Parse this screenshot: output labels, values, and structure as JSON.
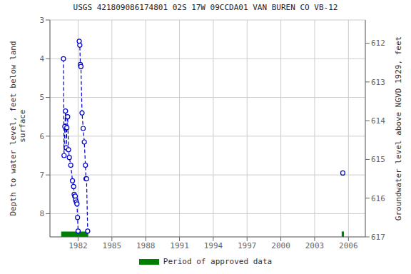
{
  "chart_data": {
    "type": "line",
    "title": "USGS 421809086174801 02S 17W 09CCDA01 VAN BUREN CO VB-12",
    "ylabel": "Depth to water level, feet below land\n surface",
    "y2label": "Groundwater level above NGVD 1929, feet",
    "xlim": [
      1979.5,
      2007.5
    ],
    "xticks": [
      1982,
      1985,
      1988,
      1991,
      1994,
      1997,
      2000,
      2003,
      2006
    ],
    "ylim": [
      8.6,
      3.0
    ],
    "yticks": [
      3.0,
      4.0,
      5.0,
      6.0,
      7.0,
      8.0
    ],
    "y2lim": [
      617.0,
      611.4
    ],
    "y2ticks": [
      612.0,
      613.0,
      614.0,
      615.0,
      616.0,
      617.0
    ],
    "grid": true,
    "legend": "bottom",
    "series": [
      {
        "type": "line",
        "color": "#0000cc",
        "line_style": "dashed",
        "marker": "open circle",
        "x": [
          1980.7,
          1980.75,
          1980.82,
          1980.88,
          1980.95,
          1981.0,
          1981.07,
          1981.15,
          1981.22,
          1981.35,
          1981.5,
          1981.6,
          1981.65,
          1981.7,
          1981.75,
          1981.78,
          1981.85,
          1981.9,
          1981.95,
          1982.0
        ],
        "values": [
          4.0,
          6.5,
          5.75,
          5.35,
          6.3,
          5.78,
          5.5,
          6.35,
          6.55,
          6.75,
          7.15,
          7.3,
          7.5,
          7.55,
          7.55,
          7.65,
          7.7,
          7.75,
          8.1,
          8.45
        ]
      },
      {
        "type": "line",
        "color": "#0000cc",
        "line_style": "dashed",
        "marker": "open circle",
        "x": [
          1982.1,
          1982.15,
          1982.2,
          1982.25,
          1982.35,
          1982.45,
          1982.55,
          1982.65,
          1982.7,
          1982.75,
          1982.85
        ],
        "values": [
          3.55,
          3.65,
          4.15,
          4.2,
          5.4,
          5.8,
          6.15,
          6.75,
          7.1,
          7.1,
          8.45
        ]
      },
      {
        "type": "scatter",
        "color": "#0000cc",
        "marker": "open circle",
        "x": [
          2005.5
        ],
        "values": [
          6.95
        ]
      }
    ],
    "approved_periods": {
      "name": "Period of approved data",
      "color": "#008000",
      "ranges": [
        [
          1980.5,
          1982.9
        ],
        [
          2005.4,
          2005.6
        ]
      ]
    }
  }
}
